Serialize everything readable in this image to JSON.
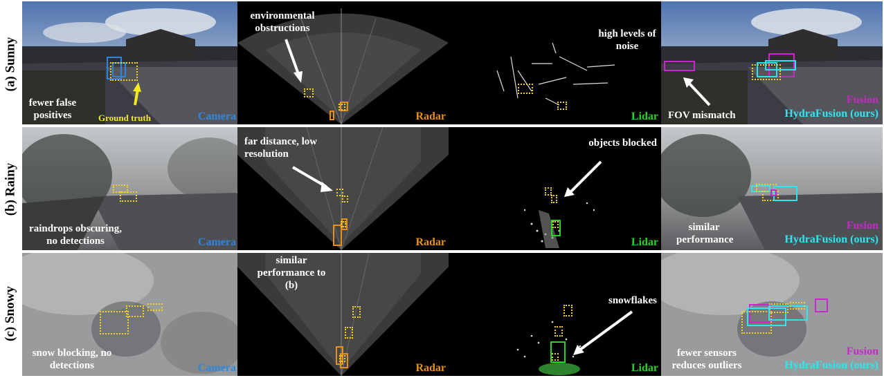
{
  "rows": [
    {
      "label": "(a) Sunny"
    },
    {
      "label": "(b) Rainy"
    },
    {
      "label": "(c) Snowy"
    }
  ],
  "modalities": {
    "camera": "Camera",
    "radar": "Radar",
    "lidar": "Lidar",
    "fusion": "Fusion",
    "hydrafusion": "HydraFusion (ours)"
  },
  "annotations": {
    "sunny": {
      "camera_note": "fewer false positives",
      "ground_truth": "Ground truth",
      "radar_note": "environmental obstructions",
      "lidar_note": "high levels of noise",
      "fusion_note": "FOV mismatch"
    },
    "rainy": {
      "camera_note": "raindrops obscuring, no detections",
      "radar_note": "far distance, low resolution",
      "lidar_note": "objects blocked",
      "fusion_note": "similar performance"
    },
    "snowy": {
      "camera_note": "snow blocking, no detections",
      "radar_note": "similar performance to (b)",
      "lidar_note": "snowflakes",
      "fusion_note": "fewer sensors reduces outliers"
    }
  },
  "colors": {
    "camera": "#2f86e0",
    "radar": "#e8901a",
    "lidar": "#28d428",
    "fusion": "#c828c8",
    "hydrafusion": "#2fe6f0",
    "ground_truth": "#f4d21f"
  }
}
